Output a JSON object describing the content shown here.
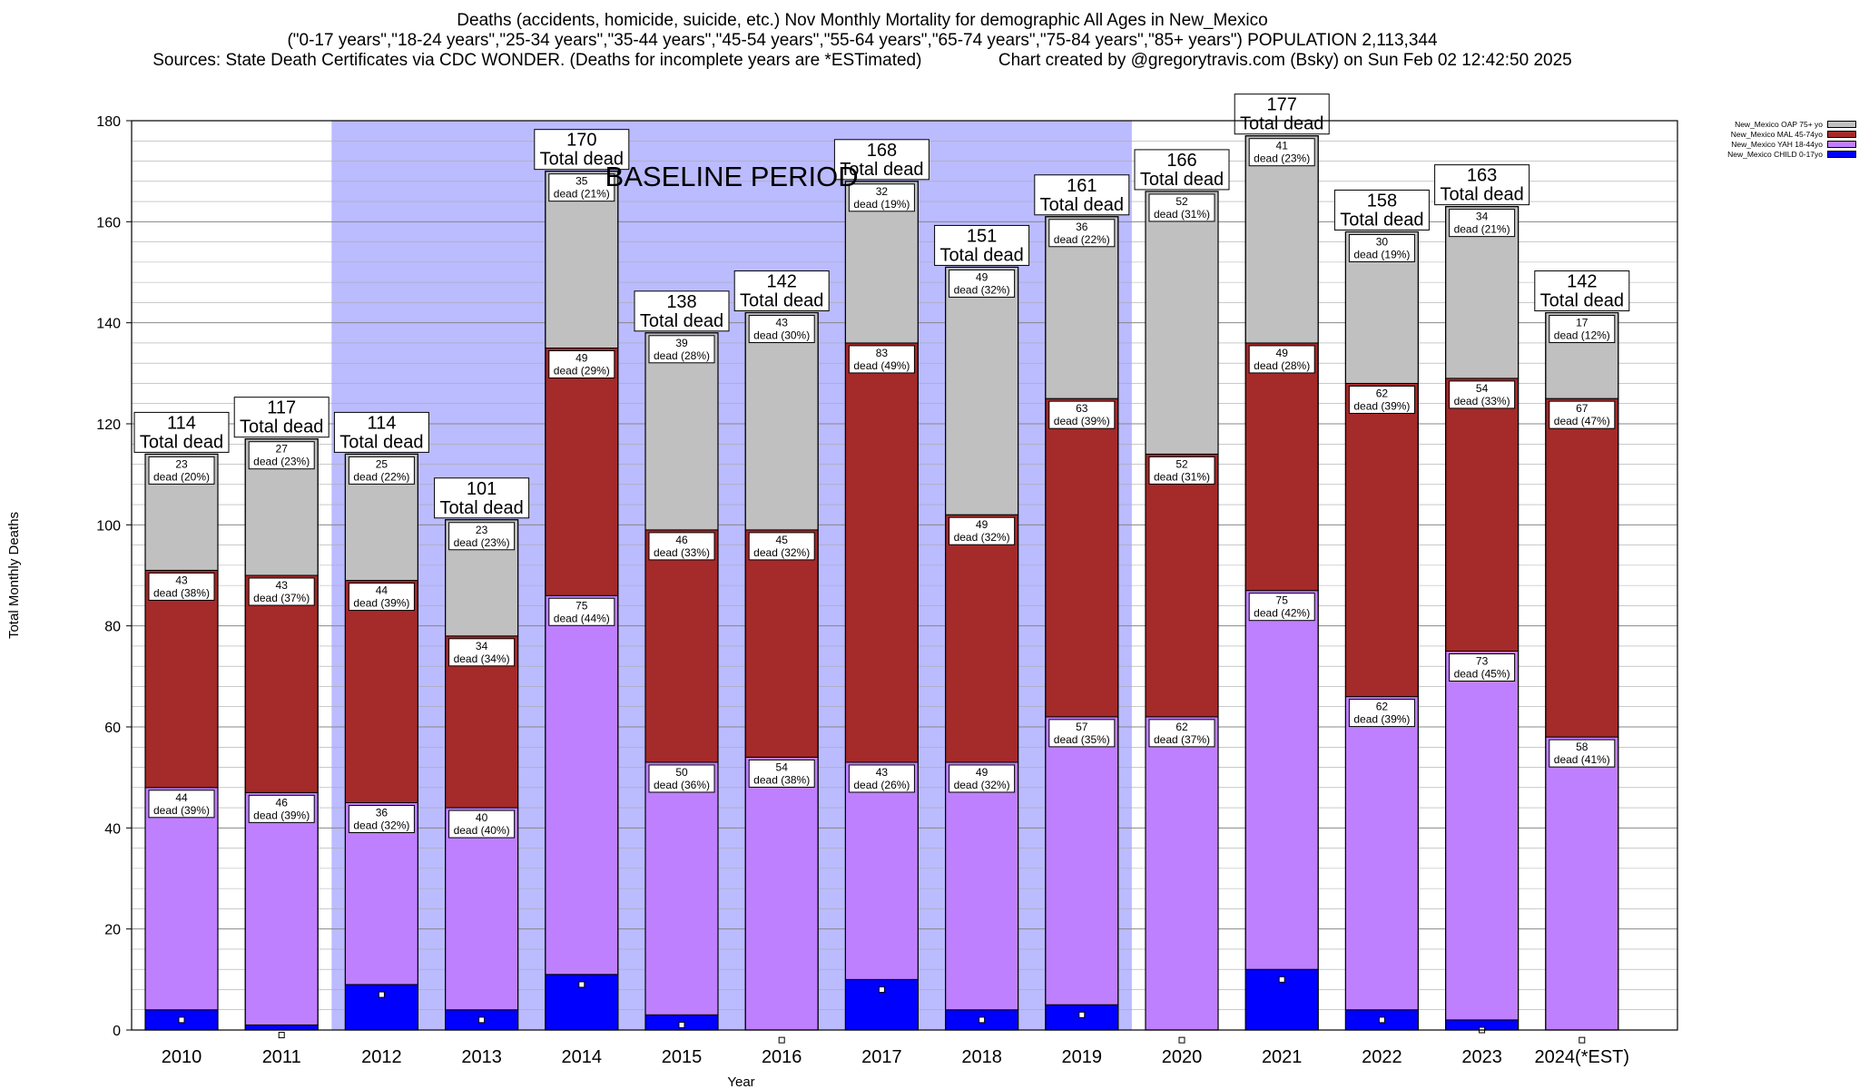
{
  "title": {
    "line1": "Deaths (accidents, homicide, suicide, etc.) Nov Monthly Mortality for demographic All Ages in New_Mexico",
    "line2": "(\"0-17 years\",\"18-24 years\",\"25-34 years\",\"35-44 years\",\"45-54 years\",\"55-64 years\",\"65-74 years\",\"75-84 years\",\"85+ years\") POPULATION 2,113,344",
    "line3_left": "Sources: State Death Certificates via CDC WONDER. (Deaths for incomplete years are *ESTimated)",
    "line3_right": "Chart created by @gregorytravis.com (Bsky) on Sun Feb 02 12:42:50 2025"
  },
  "legend": [
    {
      "label": "New_Mexico OAP 75+ yo",
      "color": "#c0c0c0"
    },
    {
      "label": "New_Mexico MAL 45-74yo",
      "color": "#a52a2a"
    },
    {
      "label": "New_Mexico YAH 18-44yo",
      "color": "#bf80ff"
    },
    {
      "label": "New_Mexico CHILD 0-17yo",
      "color": "#0000ff"
    }
  ],
  "chart_data": {
    "type": "bar",
    "stacked": true,
    "xlabel": "Year",
    "ylabel": "Total Monthly Deaths",
    "ylim": [
      0,
      180
    ],
    "yticks": [
      0,
      20,
      40,
      60,
      80,
      100,
      120,
      140,
      160,
      180
    ],
    "grid": true,
    "legend_position": "top-right",
    "baseline_label": "BASELINE PERIOD",
    "baseline_range": [
      "2012",
      "2019"
    ],
    "baseline_color": "#bbbbff",
    "total_suffix": "Total dead",
    "categories": [
      "2010",
      "2011",
      "2012",
      "2013",
      "2014",
      "2015",
      "2016",
      "2017",
      "2018",
      "2019",
      "2020",
      "2021",
      "2022",
      "2023",
      "2024(*EST)"
    ],
    "totals": [
      114,
      117,
      114,
      101,
      170,
      138,
      142,
      168,
      151,
      161,
      166,
      177,
      158,
      163,
      142
    ],
    "series": [
      {
        "name": "New_Mexico CHILD 0-17yo",
        "color": "#0000ff",
        "values": [
          4,
          1,
          9,
          4,
          11,
          3,
          0,
          10,
          4,
          5,
          0,
          12,
          4,
          2,
          0
        ],
        "markers": [
          2,
          -1,
          7,
          2,
          9,
          1,
          -2,
          8,
          2,
          3,
          -2,
          10,
          2,
          0,
          -2
        ]
      },
      {
        "name": "New_Mexico YAH 18-44yo",
        "color": "#bf80ff",
        "values": [
          44,
          46,
          36,
          40,
          75,
          50,
          54,
          43,
          49,
          57,
          62,
          75,
          62,
          73,
          58
        ],
        "labels": [
          "44|dead (39%)",
          "46|dead (39%)",
          "36|dead (32%)",
          "40|dead (40%)",
          "75|dead (44%)",
          "50|dead (36%)",
          "54|dead (38%)",
          "43|dead (26%)",
          "49|dead (32%)",
          "57|dead (35%)",
          "62|dead (37%)",
          "75|dead (42%)",
          "62|dead (39%)",
          "73|dead (45%)",
          "58|dead (41%)"
        ]
      },
      {
        "name": "New_Mexico MAL 45-74yo",
        "color": "#a52a2a",
        "values": [
          43,
          43,
          44,
          34,
          49,
          46,
          45,
          83,
          49,
          63,
          52,
          49,
          62,
          54,
          67
        ],
        "labels": [
          "43|dead (38%)",
          "43|dead (37%)",
          "44|dead (39%)",
          "34|dead (34%)",
          "49|dead (29%)",
          "46|dead (33%)",
          "45|dead (32%)",
          "83|dead (49%)",
          "49|dead (32%)",
          "63|dead (39%)",
          "52|dead (31%)",
          "49|dead (28%)",
          "62|dead (39%)",
          "54|dead (33%)",
          "67|dead (47%)"
        ]
      },
      {
        "name": "New_Mexico OAP 75+ yo",
        "color": "#c0c0c0",
        "values": [
          23,
          27,
          25,
          23,
          35,
          39,
          43,
          32,
          49,
          36,
          52,
          41,
          30,
          34,
          17
        ],
        "labels": [
          "23|dead (20%)",
          "27|dead (23%)",
          "25|dead (22%)",
          "23|dead (23%)",
          "35|dead (21%)",
          "39|dead (28%)",
          "43|dead (30%)",
          "32|dead (19%)",
          "49|dead (32%)",
          "36|dead (22%)",
          "52|dead (31%)",
          "41|dead (23%)",
          "30|dead (19%)",
          "34|dead (21%)",
          "17|dead (12%)"
        ]
      }
    ]
  }
}
